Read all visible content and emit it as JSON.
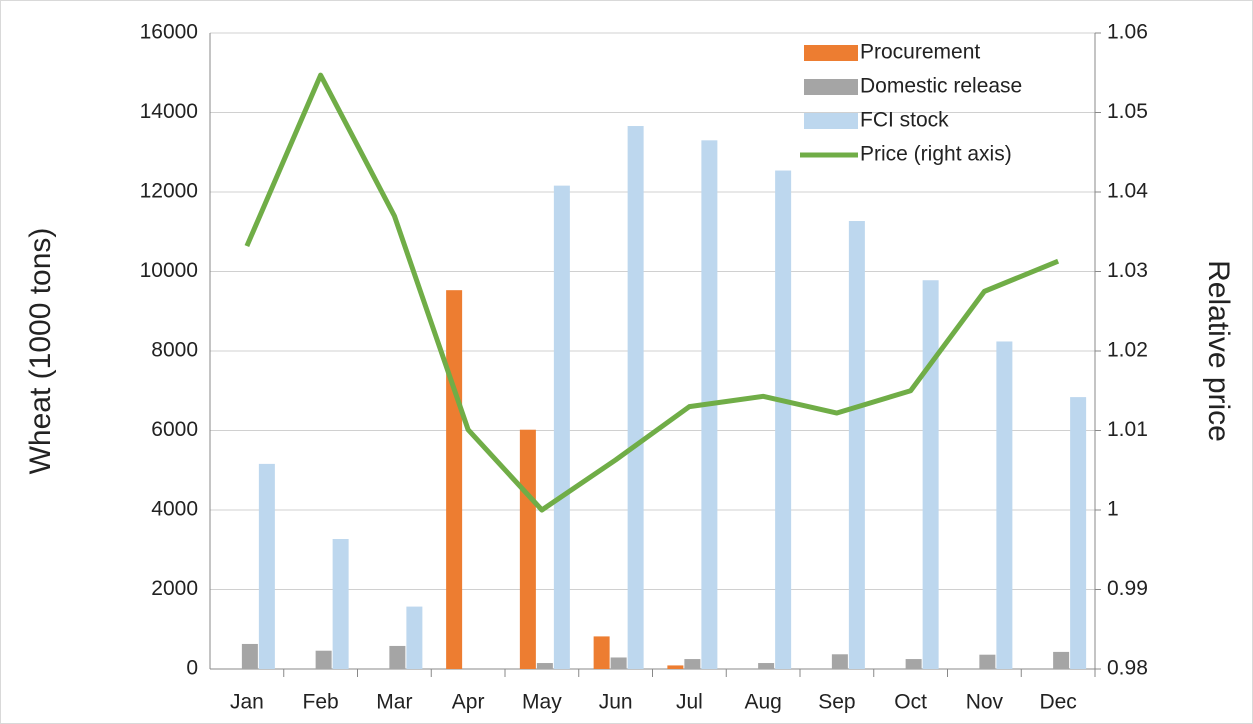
{
  "chart_data": {
    "type": "bar_line",
    "categories": [
      "Jan",
      "Feb",
      "Mar",
      "Apr",
      "May",
      "Jun",
      "Jul",
      "Aug",
      "Sep",
      "Oct",
      "Nov",
      "Dec"
    ],
    "series": [
      {
        "name": "Procurement",
        "type": "bar",
        "color": "#ed7d31",
        "values": [
          0,
          0,
          0,
          9530,
          6020,
          820,
          90,
          0,
          0,
          0,
          0,
          0
        ]
      },
      {
        "name": "Domestic release",
        "type": "bar",
        "color": "#a5a5a5",
        "values": [
          630,
          460,
          580,
          0,
          150,
          290,
          250,
          150,
          370,
          250,
          360,
          430
        ]
      },
      {
        "name": "FCI stock",
        "type": "bar",
        "color": "#bdd7ee",
        "values": [
          5160,
          3270,
          1570,
          0,
          12160,
          13660,
          13300,
          12540,
          11270,
          9780,
          8240,
          6840
        ]
      },
      {
        "name": "Price (right axis)",
        "type": "line",
        "axis": "y2",
        "color": "#70ad47",
        "values": [
          1.0332,
          1.0547,
          1.037,
          1.0101,
          1.0,
          1.0063,
          1.013,
          1.0143,
          1.0122,
          1.015,
          1.0275,
          1.0313
        ]
      }
    ],
    "y_label": "Wheat (1000 tons)",
    "y2_label": "Relative price",
    "ylim": [
      0,
      16000
    ],
    "yticks": [
      0,
      2000,
      4000,
      6000,
      8000,
      10000,
      12000,
      14000,
      16000
    ],
    "y2lim": [
      0.98,
      1.06
    ],
    "y2ticks": [
      0.98,
      0.99,
      1,
      1.01,
      1.02,
      1.03,
      1.04,
      1.05,
      1.06
    ],
    "grid": true,
    "legend": "upper right"
  }
}
